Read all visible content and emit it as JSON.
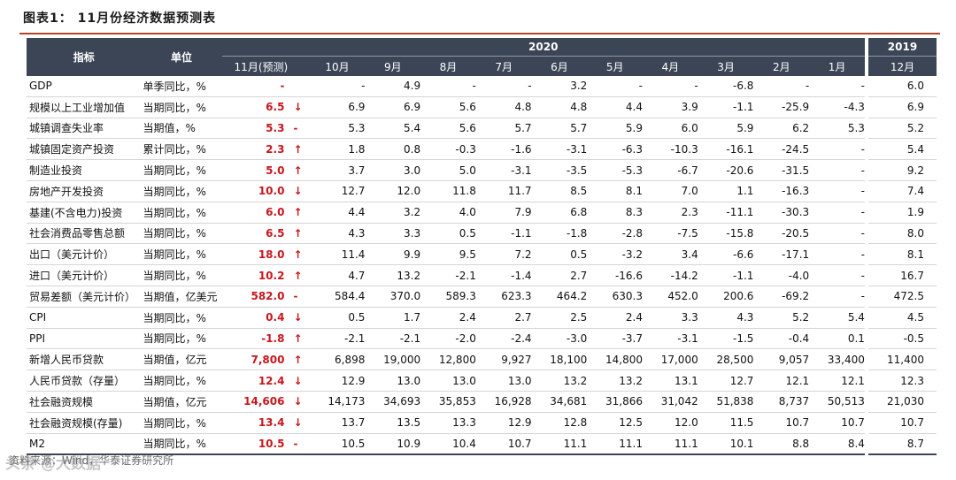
{
  "title": "图表1：  11月份经济数据预测表",
  "header": {
    "indicator": "指标",
    "unit": "单位",
    "year_2020": "2020",
    "year_2019": "2019",
    "forecast_month": "11月(预测)",
    "months_2020": [
      "10月",
      "9月",
      "8月",
      "7月",
      "6月",
      "5月",
      "4月",
      "3月",
      "2月",
      "1月"
    ],
    "month_2019": "12月"
  },
  "rows": [
    {
      "name": "GDP",
      "unit": "单季同比，%",
      "forecast": "-",
      "arrow": "",
      "values": [
        "-",
        "4.9",
        "-",
        "-",
        "3.2",
        "-",
        "-",
        "-6.8",
        "-",
        "-"
      ],
      "prev": "6.0"
    },
    {
      "name": "规模以上工业增加值",
      "unit": "当期同比，%",
      "forecast": "6.5",
      "arrow": "↓",
      "values": [
        "6.9",
        "6.9",
        "5.6",
        "4.8",
        "4.8",
        "4.4",
        "3.9",
        "-1.1",
        "-25.9",
        "-4.3"
      ],
      "prev": "6.9"
    },
    {
      "name": "城镇调查失业率",
      "unit": "当期值，%",
      "forecast": "5.3",
      "arrow": "-",
      "values": [
        "5.3",
        "5.4",
        "5.6",
        "5.7",
        "5.7",
        "5.9",
        "6.0",
        "5.9",
        "6.2",
        "5.3"
      ],
      "prev": "5.2"
    },
    {
      "name": "城镇固定资产投资",
      "unit": "累计同比，%",
      "forecast": "2.3",
      "arrow": "↑",
      "values": [
        "1.8",
        "0.8",
        "-0.3",
        "-1.6",
        "-3.1",
        "-6.3",
        "-10.3",
        "-16.1",
        "-24.5",
        "-"
      ],
      "prev": "5.4"
    },
    {
      "name": "制造业投资",
      "unit": "当期同比，%",
      "forecast": "5.0",
      "arrow": "↑",
      "values": [
        "3.7",
        "3.0",
        "5.0",
        "-3.1",
        "-3.5",
        "-5.3",
        "-6.7",
        "-20.6",
        "-31.5",
        "-"
      ],
      "prev": "9.2"
    },
    {
      "name": "房地产开发投资",
      "unit": "当期同比，%",
      "forecast": "10.0",
      "arrow": "↓",
      "values": [
        "12.7",
        "12.0",
        "11.8",
        "11.7",
        "8.5",
        "8.1",
        "7.0",
        "1.1",
        "-16.3",
        "-"
      ],
      "prev": "7.4"
    },
    {
      "name": "基建(不含电力)投资",
      "unit": "当期同比，%",
      "forecast": "6.0",
      "arrow": "↑",
      "values": [
        "4.4",
        "3.2",
        "4.0",
        "7.9",
        "6.8",
        "8.3",
        "2.3",
        "-11.1",
        "-30.3",
        "-"
      ],
      "prev": "1.9"
    },
    {
      "name": "社会消费品零售总额",
      "unit": "当期同比，%",
      "forecast": "6.5",
      "arrow": "↑",
      "values": [
        "4.3",
        "3.3",
        "0.5",
        "-1.1",
        "-1.8",
        "-2.8",
        "-7.5",
        "-15.8",
        "-20.5",
        "-"
      ],
      "prev": "8.0"
    },
    {
      "name": "出口（美元计价）",
      "unit": "当期同比，%",
      "forecast": "18.0",
      "arrow": "↑",
      "values": [
        "11.4",
        "9.9",
        "9.5",
        "7.2",
        "0.5",
        "-3.2",
        "3.4",
        "-6.6",
        "-17.1",
        "-"
      ],
      "prev": "8.1"
    },
    {
      "name": "进口（美元计价）",
      "unit": "当期同比，%",
      "forecast": "10.2",
      "arrow": "↑",
      "values": [
        "4.7",
        "13.2",
        "-2.1",
        "-1.4",
        "2.7",
        "-16.6",
        "-14.2",
        "-1.1",
        "-4.0",
        "-"
      ],
      "prev": "16.7"
    },
    {
      "name": "贸易差额（美元计价）",
      "unit": "当期值，亿美元",
      "forecast": "582.0",
      "arrow": "-",
      "values": [
        "584.4",
        "370.0",
        "589.3",
        "623.3",
        "464.2",
        "630.3",
        "452.0",
        "200.6",
        "-69.2",
        "-"
      ],
      "prev": "472.5"
    },
    {
      "name": "CPI",
      "unit": "当期同比，%",
      "forecast": "0.4",
      "arrow": "↓",
      "values": [
        "0.5",
        "1.7",
        "2.4",
        "2.7",
        "2.5",
        "2.4",
        "3.3",
        "4.3",
        "5.2",
        "5.4"
      ],
      "prev": "4.5"
    },
    {
      "name": "PPI",
      "unit": "当期同比，%",
      "forecast": "-1.8",
      "arrow": "↑",
      "values": [
        "-2.1",
        "-2.1",
        "-2.0",
        "-2.4",
        "-3.0",
        "-3.7",
        "-3.1",
        "-1.5",
        "-0.4",
        "0.1"
      ],
      "prev": "-0.5"
    },
    {
      "name": "新增人民币贷款",
      "unit": "当期值，亿元",
      "forecast": "7,800",
      "arrow": "↑",
      "values": [
        "6,898",
        "19,000",
        "12,800",
        "9,927",
        "18,100",
        "14,800",
        "17,000",
        "28,500",
        "9,057",
        "33,400"
      ],
      "prev": "11,400"
    },
    {
      "name": "人民币贷款（存量）",
      "unit": "当期同比，%",
      "forecast": "12.4",
      "arrow": "↓",
      "values": [
        "12.9",
        "13.0",
        "13.0",
        "13.0",
        "13.2",
        "13.2",
        "13.1",
        "12.7",
        "12.1",
        "12.1"
      ],
      "prev": "12.3"
    },
    {
      "name": "社会融资规模",
      "unit": "当期值，亿元",
      "forecast": "14,606",
      "arrow": "↓",
      "values": [
        "14,173",
        "34,693",
        "35,853",
        "16,928",
        "34,681",
        "31,866",
        "31,042",
        "51,838",
        "8,737",
        "50,513"
      ],
      "prev": "21,030"
    },
    {
      "name": "社会融资规模(存量)",
      "unit": "当期同比，%",
      "forecast": "13.4",
      "arrow": "↓",
      "values": [
        "13.7",
        "13.5",
        "13.3",
        "12.9",
        "12.8",
        "12.5",
        "12.0",
        "11.5",
        "10.7",
        "10.7"
      ],
      "prev": "10.7"
    },
    {
      "name": "M2",
      "unit": "当期同比，%",
      "forecast": "10.5",
      "arrow": "-",
      "values": [
        "10.5",
        "10.9",
        "10.4",
        "10.7",
        "11.1",
        "11.1",
        "11.1",
        "10.1",
        "8.8",
        "8.4"
      ],
      "prev": "8.7"
    }
  ],
  "footer": {
    "source": "资料来源：Wind，华泰证券研究所",
    "watermark": "头条 @大数据"
  },
  "colors": {
    "header_bg": "#3b4556",
    "accent_red": "#c8161d",
    "rule": "#b4432c"
  }
}
